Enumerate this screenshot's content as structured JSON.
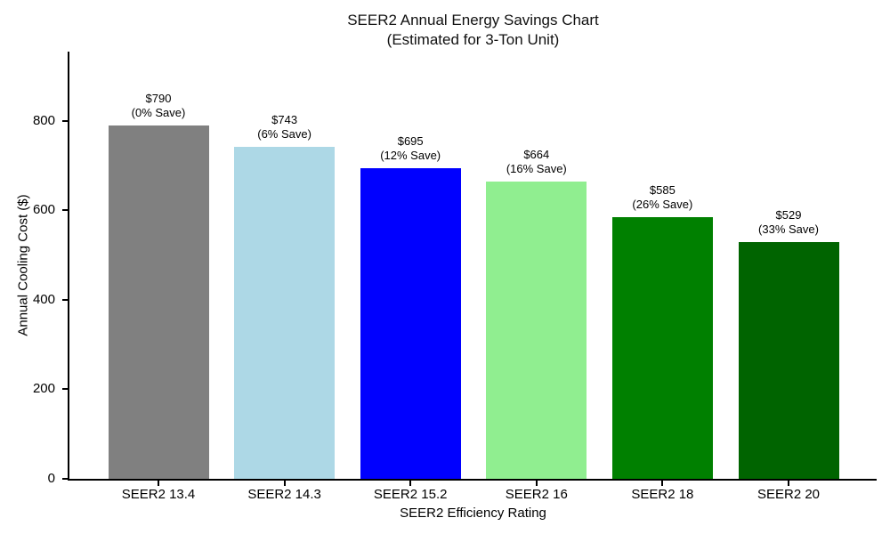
{
  "chart_data": {
    "type": "bar",
    "title": "SEER2 Annual Energy Savings Chart",
    "subtitle": "(Estimated for 3-Ton Unit)",
    "xlabel": "SEER2 Efficiency Rating",
    "ylabel": "Annual Cooling Cost ($)",
    "categories": [
      "SEER2 13.4",
      "SEER2 14.3",
      "SEER2 15.2",
      "SEER2 16",
      "SEER2 18",
      "SEER2 20"
    ],
    "values": [
      790,
      743,
      695,
      664,
      585,
      529
    ],
    "savings_percent": [
      0,
      6,
      12,
      16,
      26,
      33
    ],
    "bar_annotations": [
      [
        "$790",
        "(0% Save)"
      ],
      [
        "$743",
        "(6% Save)"
      ],
      [
        "$695",
        "(12% Save)"
      ],
      [
        "$664",
        "(16% Save)"
      ],
      [
        "$585",
        "(26% Save)"
      ],
      [
        "$529",
        "(33% Save)"
      ]
    ],
    "colors": [
      "#808080",
      "#ADD8E6",
      "#0000FF",
      "#90EE90",
      "#008000",
      "#006400"
    ],
    "yticks": [
      0,
      200,
      400,
      600,
      800
    ],
    "ylim": [
      0,
      955
    ],
    "grid": false,
    "legend": "none",
    "axis_color": "#000000",
    "text_color": "#000000",
    "background": "#ffffff"
  }
}
